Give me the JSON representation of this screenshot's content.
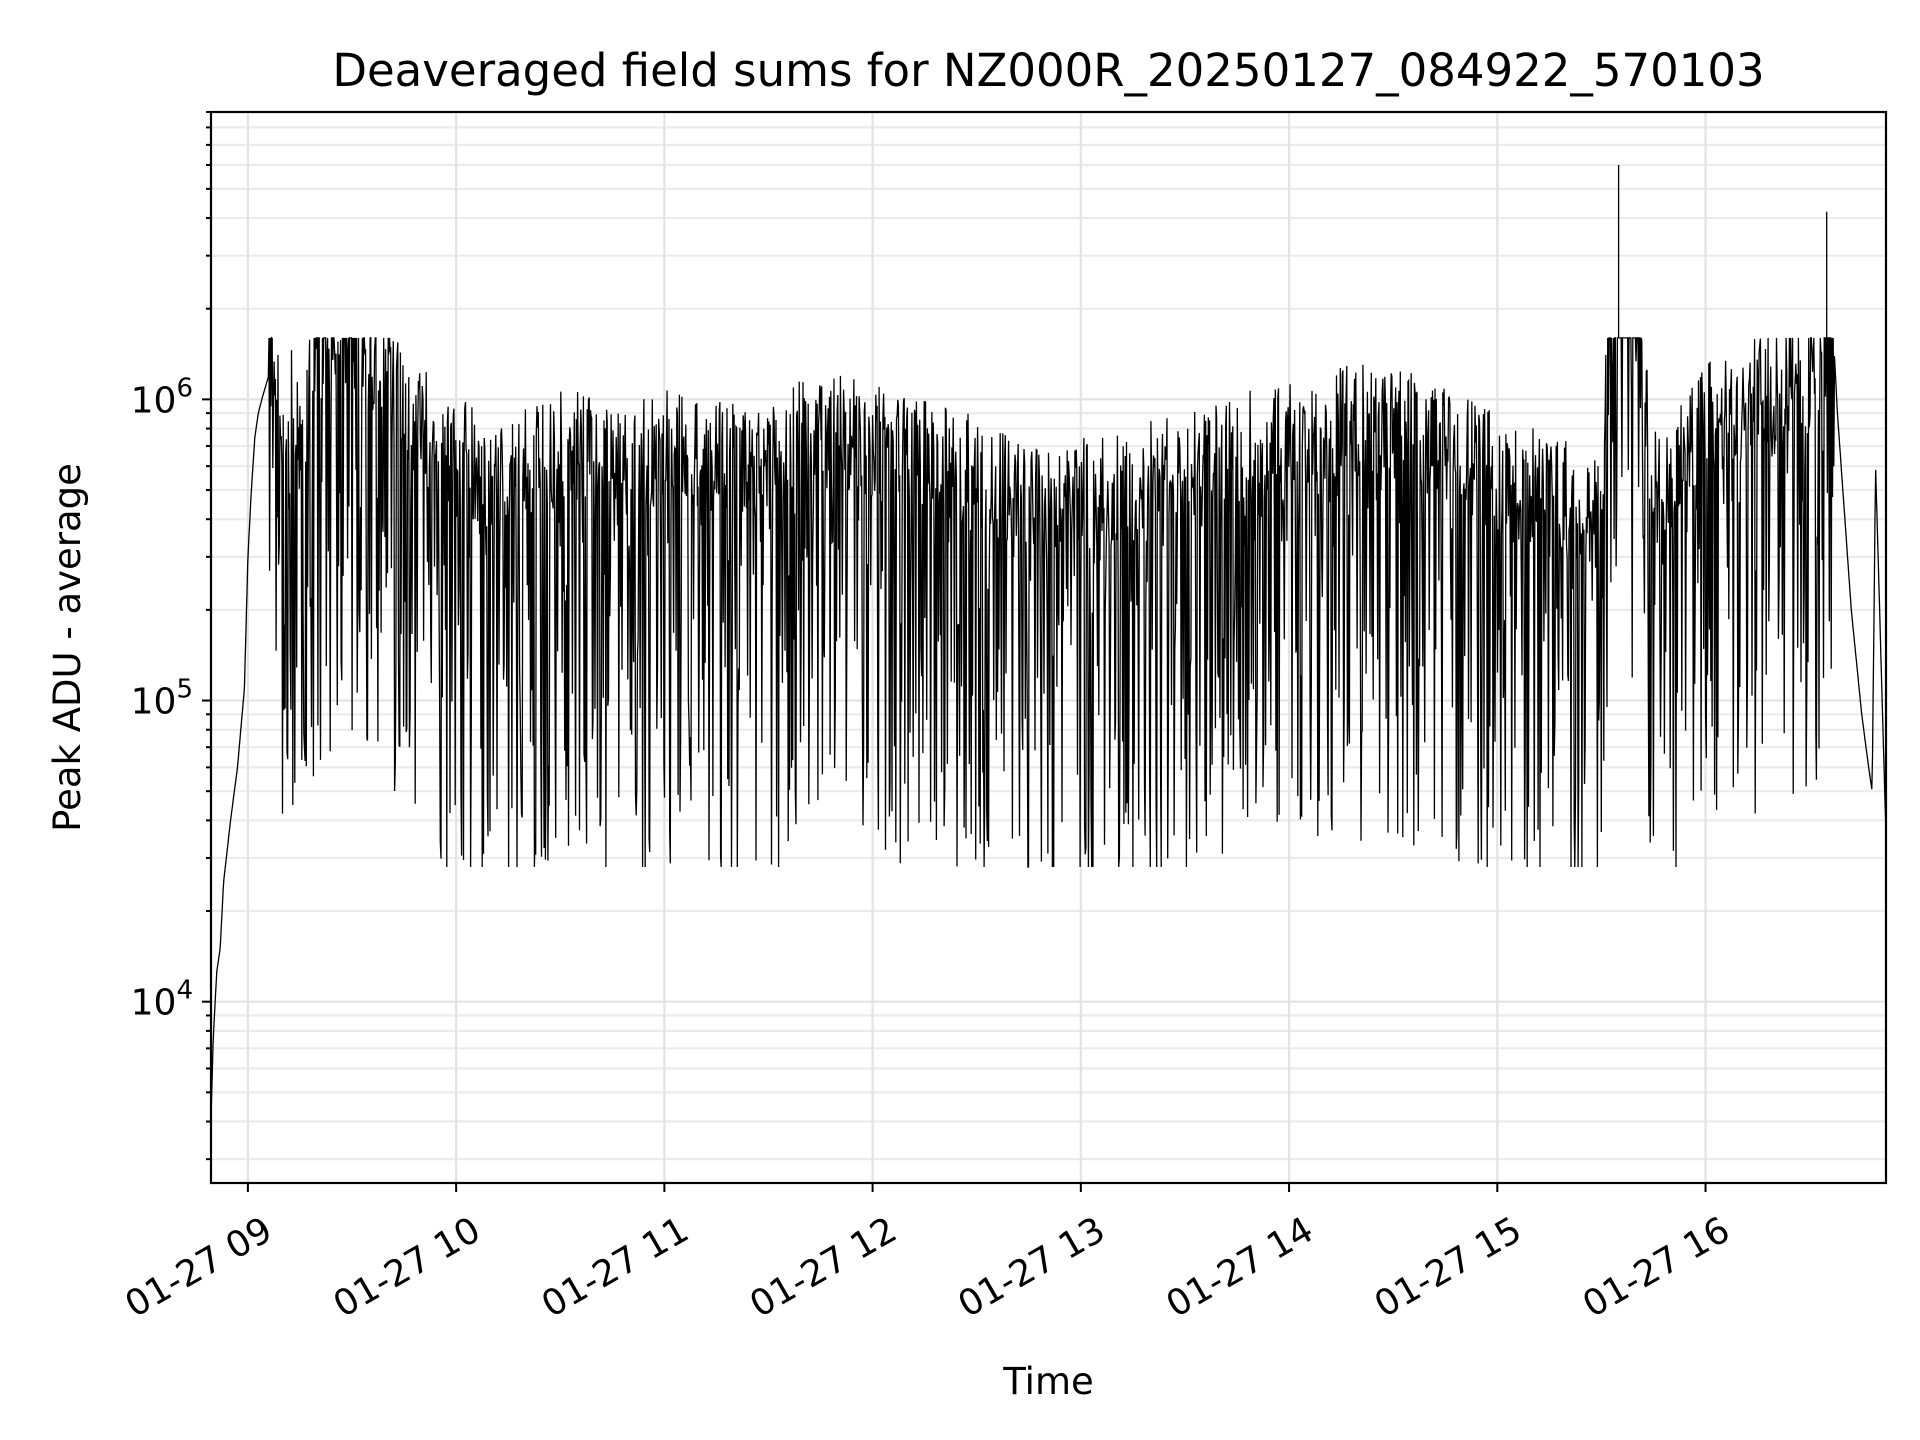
{
  "chart_data": {
    "type": "line",
    "title": "Deaveraged field sums for NZ000R_20250127_084922_570103",
    "xlabel": "Time",
    "ylabel": "Peak ADU - average",
    "yscale": "log",
    "ylim": [
      2500,
      9000000
    ],
    "xlim": [
      "2025-01-27 08:49:22",
      "2025-01-27 16:52:00"
    ],
    "grid": true,
    "legend": "none",
    "line_color": "#000000",
    "x_ticks": [
      {
        "label": "01-27 09",
        "t": "2025-01-27 09:00"
      },
      {
        "label": "01-27 10",
        "t": "2025-01-27 10:00"
      },
      {
        "label": "01-27 11",
        "t": "2025-01-27 11:00"
      },
      {
        "label": "01-27 12",
        "t": "2025-01-27 12:00"
      },
      {
        "label": "01-27 13",
        "t": "2025-01-27 13:00"
      },
      {
        "label": "01-27 14",
        "t": "2025-01-27 14:00"
      },
      {
        "label": "01-27 15",
        "t": "2025-01-27 15:00"
      },
      {
        "label": "01-27 16",
        "t": "2025-01-27 16:00"
      }
    ],
    "y_ticks": [
      {
        "base": "10",
        "exp": "4",
        "value": 10000
      },
      {
        "base": "10",
        "exp": "5",
        "value": 100000
      },
      {
        "base": "10",
        "exp": "6",
        "value": 1000000
      }
    ],
    "series": [
      {
        "x": [
          "2025-01-27 08:49:22",
          "2025-01-27 08:50:00",
          "2025-01-27 08:51:00",
          "2025-01-27 08:52:00",
          "2025-01-27 08:53:00",
          "2025-01-27 08:55:00",
          "2025-01-27 08:57:00",
          "2025-01-27 08:59:00",
          "2025-01-27 09:00:00",
          "2025-01-27 09:01:00",
          "2025-01-27 09:02:00",
          "2025-01-27 09:03:00",
          "2025-01-27 09:04:00",
          "2025-01-27 09:06:00",
          "2025-01-27 09:08:00",
          "2025-01-27 09:10:00",
          "2025-01-27 09:12:00",
          "2025-01-27 09:15:00",
          "2025-01-27 09:20:00",
          "2025-01-27 09:25:00",
          "2025-01-27 09:30:00",
          "2025-01-27 09:35:00",
          "2025-01-27 09:40:00",
          "2025-01-27 09:45:00",
          "2025-01-27 09:50:00",
          "2025-01-27 10:00:00",
          "2025-01-27 10:15:00",
          "2025-01-27 10:30:00",
          "2025-01-27 10:45:00",
          "2025-01-27 11:00:00",
          "2025-01-27 11:30:00",
          "2025-01-27 11:40:00",
          "2025-01-27 12:00:00",
          "2025-01-27 12:30:00",
          "2025-01-27 12:50:00",
          "2025-01-27 13:00:00",
          "2025-01-27 13:30:00",
          "2025-01-27 14:00:00",
          "2025-01-27 14:30:00",
          "2025-01-27 15:00:00",
          "2025-01-27 15:30:00",
          "2025-01-27 15:35:00",
          "2025-01-27 15:45:00",
          "2025-01-27 16:00:00",
          "2025-01-27 16:20:00",
          "2025-01-27 16:30:00",
          "2025-01-27 16:33:00",
          "2025-01-27 16:35:00",
          "2025-01-27 16:38:00",
          "2025-01-27 16:42:00",
          "2025-01-27 16:45:00",
          "2025-01-27 16:47:00",
          "2025-01-27 16:48:00",
          "2025-01-27 16:49:00",
          "2025-01-27 16:52:00"
        ],
        "y": [
          4000,
          7500,
          12500,
          15000,
          25000,
          40000,
          60000,
          110000,
          300000,
          500000,
          750000,
          900000,
          1000000,
          1200000,
          800000,
          600000,
          700000,
          500000,
          1000000,
          1200000,
          1300000,
          1100000,
          1000000,
          700000,
          600000,
          450000,
          400000,
          500000,
          450000,
          500000,
          400000,
          600000,
          500000,
          400000,
          300000,
          350000,
          400000,
          550000,
          600000,
          400000,
          300000,
          6000000,
          350000,
          600000,
          800000,
          900000,
          1000000,
          4200000,
          900000,
          200000,
          90000,
          60000,
          50000,
          600000,
          35000
        ]
      }
    ]
  }
}
